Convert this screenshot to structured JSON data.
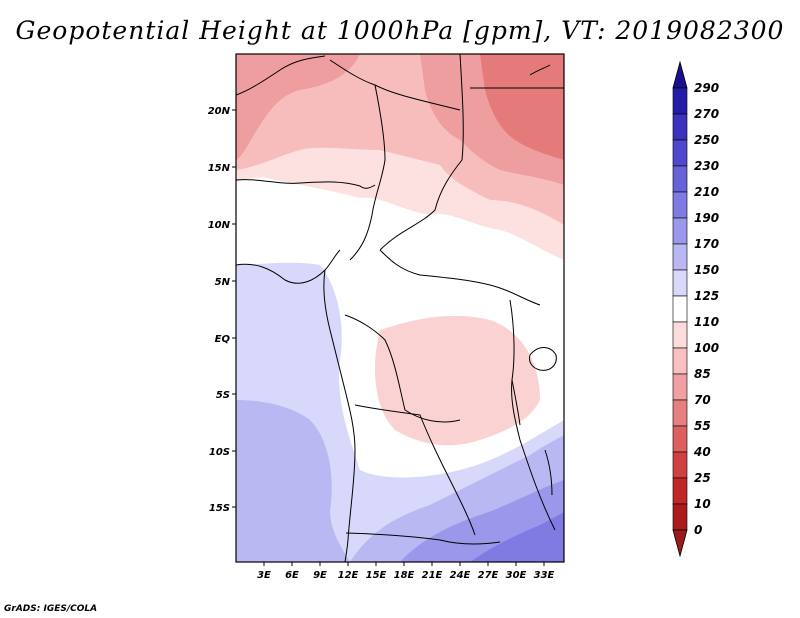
{
  "title": "Geopotential Height at 1000hPa [gpm], VT: 2019082300",
  "footer": "GrADS: IGES/COLA",
  "map": {
    "lat_labels": [
      "20N",
      "15N",
      "10N",
      "5N",
      "EQ",
      "5S",
      "10S",
      "15S"
    ],
    "lon_labels": [
      "3E",
      "6E",
      "9E",
      "12E",
      "15E",
      "18E",
      "21E",
      "24E",
      "27E",
      "30E",
      "33E"
    ]
  },
  "colorbar": {
    "levels": [
      "290",
      "270",
      "250",
      "230",
      "210",
      "190",
      "170",
      "150",
      "125",
      "110",
      "100",
      "85",
      "70",
      "55",
      "40",
      "25",
      "10",
      "0"
    ],
    "colors": {
      "top_arrow": "#1a0f8c",
      "boxes": [
        "#251ca8",
        "#3a31bc",
        "#5048cc",
        "#6762d8",
        "#7f7be3",
        "#9b98ec",
        "#bab8f3",
        "#d8d8fa",
        "#ffffff",
        "#fcdcdc",
        "#f8c0c0",
        "#f0a0a0",
        "#e68080",
        "#dc6060",
        "#d04040",
        "#c02828",
        "#aa1c1c"
      ],
      "bottom_arrow": "#9c1a1a"
    }
  }
}
